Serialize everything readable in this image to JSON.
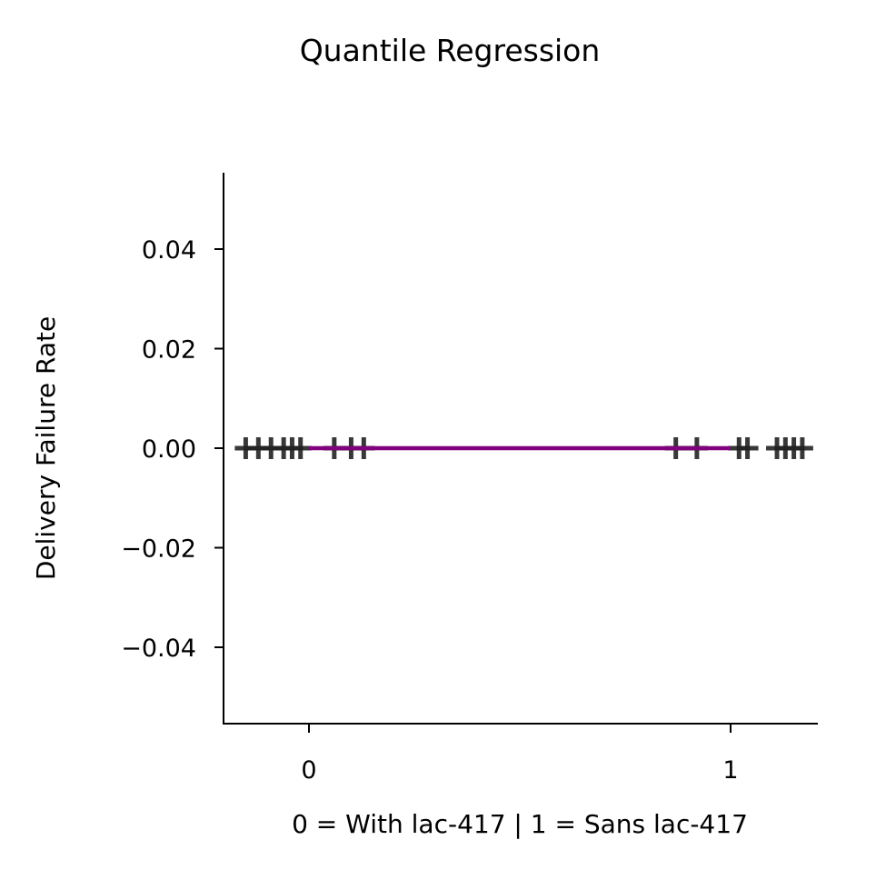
{
  "chart_data": {
    "type": "scatter",
    "title": "Quantile Regression",
    "xlabel": "0 = With lac-417 | 1 = Sans lac-417",
    "ylabel": "Delivery Failure Rate",
    "xlim": [
      -0.2,
      1.2
    ],
    "ylim": [
      -0.055,
      0.055
    ],
    "x_ticks": [
      0,
      1
    ],
    "x_tick_labels": [
      "0",
      "1"
    ],
    "y_ticks": [
      0.04,
      0.02,
      0.0,
      -0.02,
      -0.04
    ],
    "y_tick_labels": [
      "0.04",
      "0.02",
      "0.00",
      "−0.02",
      "−0.04"
    ],
    "grid": false,
    "series": [
      {
        "type": "scatter",
        "marker": "plus",
        "color": "#222222",
        "points": [
          {
            "x": -0.15,
            "y": 0
          },
          {
            "x": -0.12,
            "y": 0
          },
          {
            "x": -0.09,
            "y": 0
          },
          {
            "x": -0.06,
            "y": 0
          },
          {
            "x": -0.04,
            "y": 0
          },
          {
            "x": -0.02,
            "y": 0
          },
          {
            "x": 0.06,
            "y": 0
          },
          {
            "x": 0.1,
            "y": 0
          },
          {
            "x": 0.13,
            "y": 0
          },
          {
            "x": 0.87,
            "y": 0
          },
          {
            "x": 0.92,
            "y": 0
          },
          {
            "x": 1.02,
            "y": 0
          },
          {
            "x": 1.04,
            "y": 0
          },
          {
            "x": 1.11,
            "y": 0
          },
          {
            "x": 1.13,
            "y": 0
          },
          {
            "x": 1.15,
            "y": 0
          },
          {
            "x": 1.17,
            "y": 0
          }
        ]
      },
      {
        "type": "line",
        "color": "#800080",
        "points": [
          {
            "x": 0,
            "y": 0
          },
          {
            "x": 1,
            "y": 0
          }
        ]
      }
    ]
  }
}
